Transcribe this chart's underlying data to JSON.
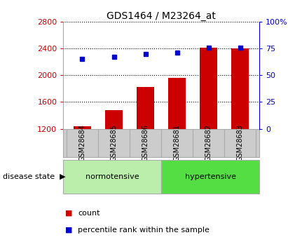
{
  "title": "GDS1464 / M23264_at",
  "categories": [
    "GSM28684",
    "GSM28685",
    "GSM28686",
    "GSM28681",
    "GSM28682",
    "GSM28683"
  ],
  "bar_values": [
    1242,
    1480,
    1820,
    1960,
    2410,
    2400
  ],
  "percentile_values": [
    65,
    67,
    70,
    71,
    76,
    76
  ],
  "bar_color": "#cc0000",
  "percentile_color": "#0000cc",
  "ylim_left": [
    1200,
    2800
  ],
  "ylim_right": [
    0,
    100
  ],
  "yticks_left": [
    1200,
    1600,
    2000,
    2400,
    2800
  ],
  "yticks_right": [
    0,
    25,
    50,
    75,
    100
  ],
  "ytick_labels_right": [
    "0",
    "25",
    "50",
    "75",
    "100%"
  ],
  "group1_label": "normotensive",
  "group2_label": "hypertensive",
  "group1_indices": [
    0,
    1,
    2
  ],
  "group2_indices": [
    3,
    4,
    5
  ],
  "group_label_prefix": "disease state",
  "legend_count_label": "count",
  "legend_pct_label": "percentile rank within the sample",
  "bar_width": 0.55,
  "grid_color": "#000000",
  "axis_color_left": "#cc0000",
  "axis_color_right": "#0000cc",
  "bg_plot": "#ffffff",
  "bg_xtick": "#cccccc",
  "bg_group1": "#bbeeaa",
  "bg_group2": "#55dd44",
  "title_fontsize": 10,
  "tick_fontsize": 8,
  "label_fontsize": 8
}
